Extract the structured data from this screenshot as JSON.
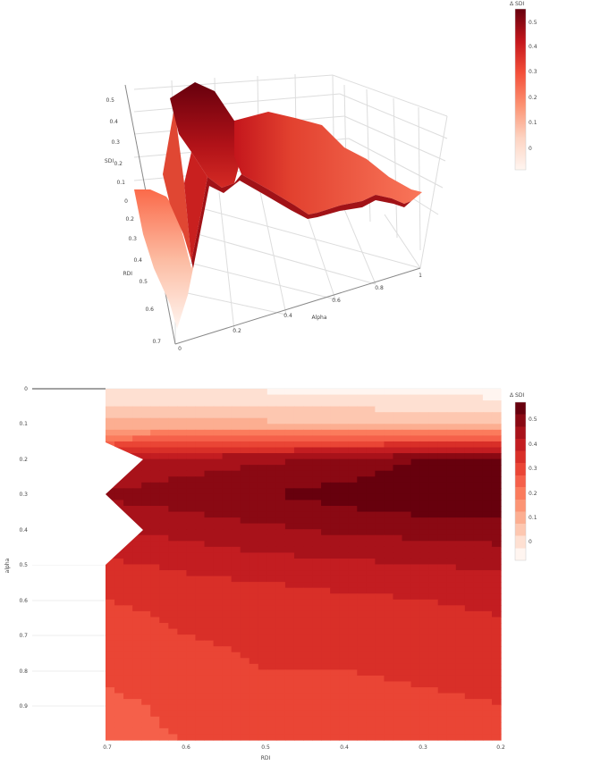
{
  "chart_data": [
    {
      "type": "surface",
      "zlabel": "SDI",
      "ylabel": "RDI",
      "xlabel": "Alpha",
      "z_ticks": [
        "0",
        "0.1",
        "0.2",
        "0.3",
        "0.4",
        "0.5"
      ],
      "rdi_ticks": [
        "0.2",
        "0.3",
        "0.4",
        "0.5",
        "0.6",
        "0.7"
      ],
      "alpha_ticks": [
        "0",
        "0.2",
        "0.4",
        "0.6",
        "0.8",
        "1"
      ],
      "colorbar": {
        "title": "Δ SDI",
        "ticks": [
          "0",
          "0.1",
          "0.2",
          "0.3",
          "0.4",
          "0.5"
        ],
        "range": [
          -0.1,
          0.55
        ]
      }
    },
    {
      "type": "heatmap",
      "subtype": "contour",
      "xlabel": "RDI",
      "ylabel": "alpha",
      "x": [
        0.7,
        0.6,
        0.5,
        0.4,
        0.3,
        0.2
      ],
      "x_ticks": [
        "0.7",
        "0.6",
        "0.5",
        "0.4",
        "0.3",
        "0.2"
      ],
      "y": [
        0,
        0.1,
        0.2,
        0.3,
        0.4,
        0.5,
        0.6,
        0.7,
        0.8,
        0.9,
        1.0
      ],
      "y_ticks": [
        "0",
        "0.1",
        "0.2",
        "0.3",
        "0.4",
        "0.5",
        "0.6",
        "0.7",
        "0.8",
        "0.9"
      ],
      "z": [
        [
          -0.05,
          -0.05,
          -0.06,
          -0.06,
          -0.07,
          -0.08
        ],
        [
          0.06,
          0.07,
          0.06,
          0.05,
          0.04,
          0.03
        ],
        [
          0.38,
          0.42,
          0.44,
          0.46,
          0.5,
          0.52
        ],
        [
          0.46,
          0.48,
          0.5,
          0.52,
          0.55,
          0.56
        ],
        [
          0.4,
          0.42,
          0.44,
          0.46,
          0.47,
          0.48
        ],
        [
          0.34,
          0.36,
          0.38,
          0.39,
          0.4,
          0.41
        ],
        [
          0.3,
          0.32,
          0.32,
          0.34,
          0.35,
          0.36
        ],
        [
          0.27,
          0.3,
          0.31,
          0.32,
          0.33,
          0.34
        ],
        [
          0.26,
          0.28,
          0.3,
          0.3,
          0.31,
          0.32
        ],
        [
          0.24,
          0.26,
          0.27,
          0.28,
          0.29,
          0.3
        ],
        [
          0.24,
          0.25,
          0.26,
          0.27,
          0.28,
          0.29
        ]
      ],
      "colorbar": {
        "title": "Δ SDI",
        "ticks": [
          "0",
          "0.1",
          "0.2",
          "0.3",
          "0.4",
          "0.5"
        ],
        "range": [
          -0.1,
          0.55
        ]
      }
    }
  ],
  "colors": [
    "#fff5f0",
    "#fcbba1",
    "#fc9272",
    "#fb6a4a",
    "#ef3b2c",
    "#cb181d",
    "#99000d",
    "#67000d"
  ]
}
